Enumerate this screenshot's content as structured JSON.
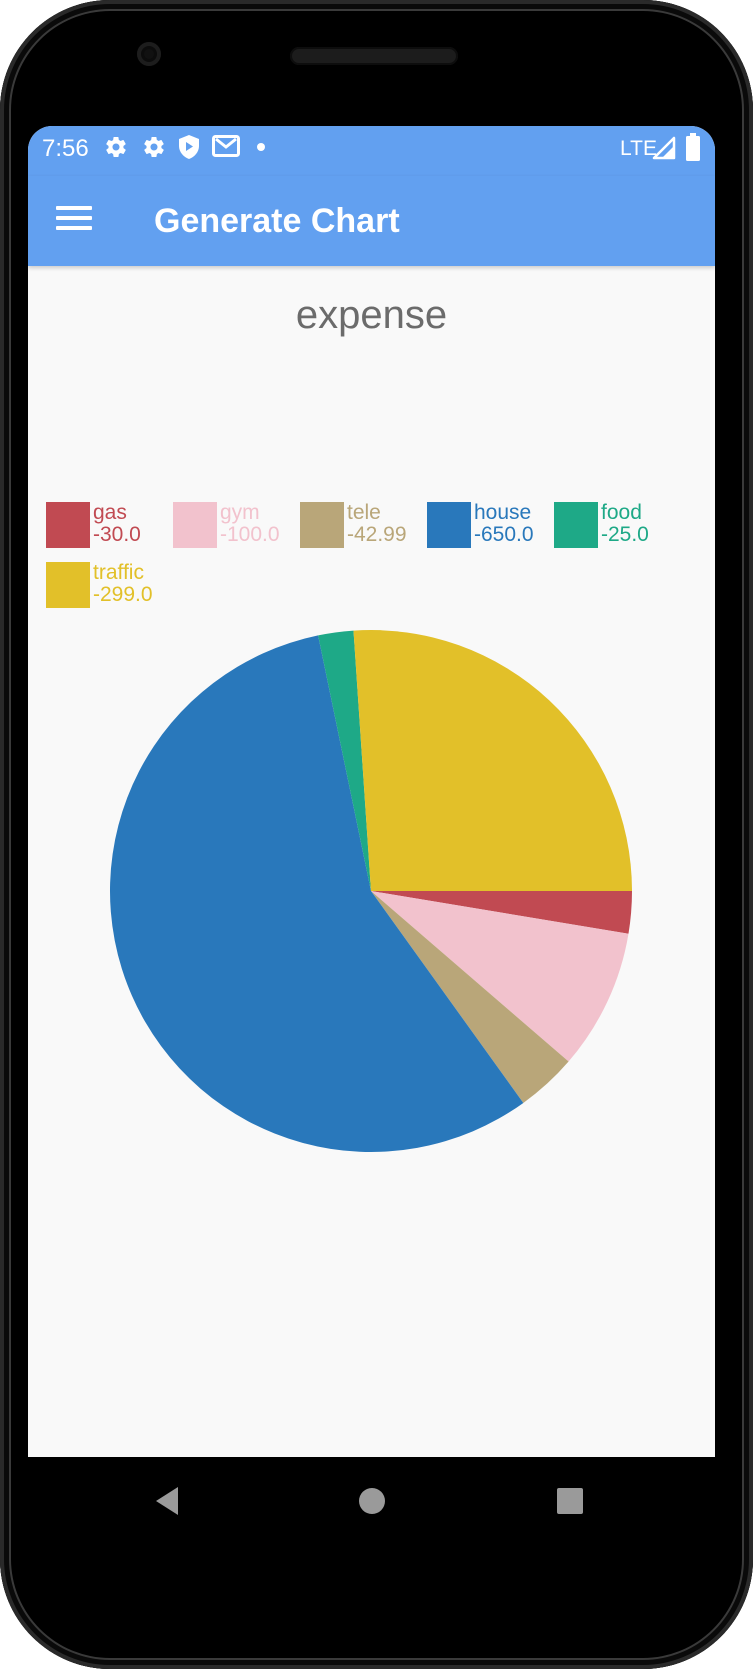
{
  "status_bar": {
    "time": "7:56",
    "network": "LTE",
    "icons": [
      "gear-icon",
      "gear-icon",
      "shield-icon",
      "gmail-icon",
      "dot-icon"
    ]
  },
  "app_bar": {
    "title": "Generate Chart",
    "menu_icon": "hamburger-menu-icon",
    "color": "#62a0f0"
  },
  "chart_data": {
    "type": "pie",
    "title": "expense",
    "legend_placement": "top",
    "series": [
      {
        "name": "gas",
        "value": -30.0,
        "label": "-30.0",
        "color": "#c14a52"
      },
      {
        "name": "gym",
        "value": -100.0,
        "label": "-100.0",
        "color": "#f2c2cd"
      },
      {
        "name": "tele",
        "value": -42.99,
        "label": "-42.99",
        "color": "#b9a679"
      },
      {
        "name": "house",
        "value": -650.0,
        "label": "-650.0",
        "color": "#2978bb"
      },
      {
        "name": "food",
        "value": -25.0,
        "label": "-25.0",
        "color": "#1ea987"
      },
      {
        "name": "traffic",
        "value": -299.0,
        "label": "-299.0",
        "color": "#e2c029"
      }
    ]
  },
  "nav_bar": {
    "buttons": [
      "back-icon",
      "home-icon",
      "recents-icon"
    ]
  }
}
